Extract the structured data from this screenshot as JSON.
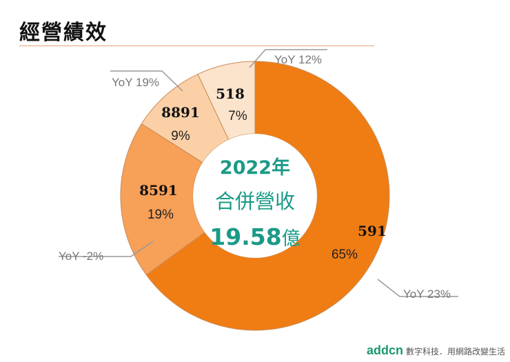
{
  "title": "經營績效",
  "chart_data": {
    "type": "pie",
    "donut": true,
    "start": "top",
    "direction": "clockwise",
    "center_text": {
      "year": "2022年",
      "label": "合併營收",
      "total": "19.58",
      "unit": "億"
    },
    "slices": [
      {
        "label": "591",
        "percent": 65,
        "pct_label": "65%",
        "yoy": "YoY 23%",
        "color": "#ef7d14"
      },
      {
        "label": "8591",
        "percent": 19,
        "pct_label": "19%",
        "yoy": "YoY -2%",
        "color": "#f7a058"
      },
      {
        "label": "8891",
        "percent": 9,
        "pct_label": "9%",
        "yoy": "YoY 19%",
        "color": "#fbd0a6"
      },
      {
        "label": "518",
        "percent": 7,
        "pct_label": "7%",
        "yoy": "YoY 12%",
        "color": "#fce3cc"
      }
    ]
  },
  "footer": {
    "brand": "addcn",
    "tagline": "數字科技．用網路改變生活"
  }
}
